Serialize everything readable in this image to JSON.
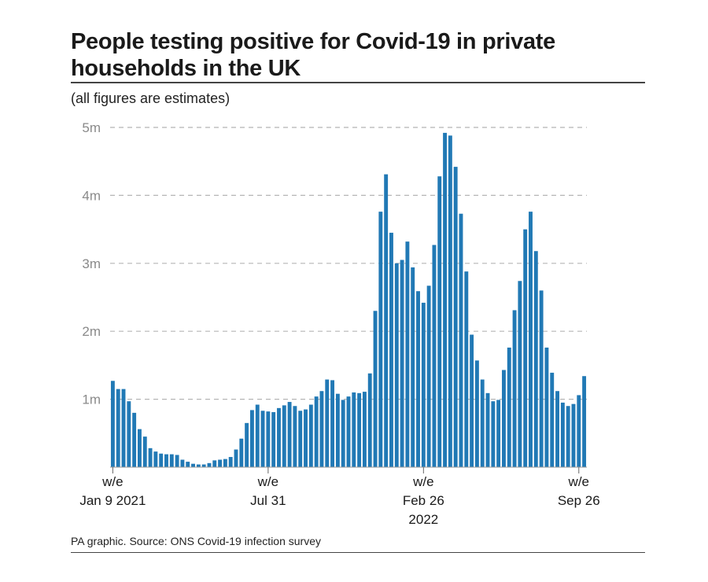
{
  "header": {
    "title": "People testing positive for Covid-19 in private households in the UK",
    "subtitle": "(all figures are estimates)"
  },
  "footer": {
    "source": "PA graphic. Source: ONS Covid-19 infection survey"
  },
  "colors": {
    "bar": "#2179b5",
    "grid": "#b5b5b5",
    "axis_labels": "#8a8a8a"
  },
  "chart_data": {
    "type": "bar",
    "title": "People testing positive for Covid-19 in private households in the UK",
    "subtitle": "(all figures are estimates)",
    "ylim": [
      0,
      5000000
    ],
    "y_ticks": [
      {
        "value": 1000000,
        "label": "1m"
      },
      {
        "value": 2000000,
        "label": "2m"
      },
      {
        "value": 3000000,
        "label": "3m"
      },
      {
        "value": 4000000,
        "label": "4m"
      },
      {
        "value": 5000000,
        "label": "5m"
      }
    ],
    "grid": "horizontal dashed",
    "x_ticks": [
      {
        "index": 0,
        "lines": [
          "w/e",
          "Jan 9 2021"
        ]
      },
      {
        "index": 29,
        "lines": [
          "w/e",
          "Jul 31"
        ]
      },
      {
        "index": 58,
        "lines": [
          "w/e",
          "Feb 26",
          "2022"
        ]
      },
      {
        "index": 87,
        "lines": [
          "w/e",
          "Sep 26"
        ]
      }
    ],
    "values": [
      1270000,
      1150000,
      1150000,
      970000,
      800000,
      560000,
      450000,
      280000,
      230000,
      200000,
      190000,
      190000,
      180000,
      110000,
      80000,
      50000,
      40000,
      40000,
      60000,
      100000,
      110000,
      120000,
      150000,
      260000,
      420000,
      650000,
      840000,
      920000,
      830000,
      820000,
      810000,
      870000,
      910000,
      960000,
      900000,
      830000,
      850000,
      920000,
      1040000,
      1120000,
      1290000,
      1280000,
      1080000,
      990000,
      1040000,
      1100000,
      1090000,
      1110000,
      1380000,
      2300000,
      3760000,
      4310000,
      3450000,
      3000000,
      3050000,
      3320000,
      2940000,
      2590000,
      2420000,
      2670000,
      3270000,
      4280000,
      4920000,
      4880000,
      4420000,
      3730000,
      2880000,
      1950000,
      1570000,
      1290000,
      1090000,
      970000,
      990000,
      1430000,
      1760000,
      2310000,
      2740000,
      3500000,
      3760000,
      3180000,
      2600000,
      1760000,
      1390000,
      1120000,
      950000,
      900000,
      930000,
      1060000,
      1340000
    ]
  }
}
